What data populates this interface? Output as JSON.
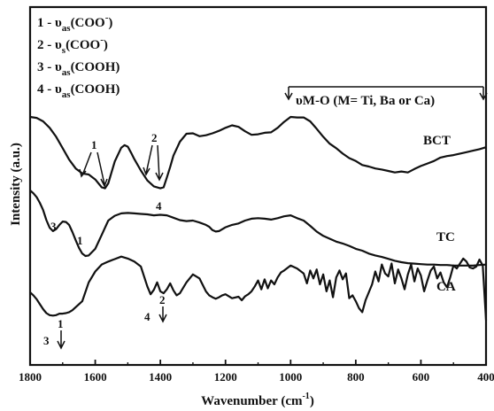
{
  "chart_data": {
    "type": "line",
    "xlabel": "Wavenumber (cm",
    "xlabel_sup": "-1",
    "xlabel_tail": ")",
    "ylabel": "Intensity (a.u.)",
    "xlim": [
      1800,
      400
    ],
    "x_reversed": true,
    "xticks": [
      "1800",
      "1600",
      "1400",
      "1200",
      "1000",
      "800",
      "600",
      "400"
    ],
    "grid": false,
    "legend": [
      {
        "num": "1 - ",
        "sym": "υ",
        "sub": "as",
        "group": "(COO",
        "sup": "-",
        "close": ")"
      },
      {
        "num": "2 - ",
        "sym": "υ",
        "sub": "s",
        "group": "(COO",
        "sup": "-",
        "close": ")"
      },
      {
        "num": "3 - ",
        "sym": "υ",
        "sub": "as",
        "group": "(COOH)",
        "sup": "",
        "close": ""
      },
      {
        "num": "4 - ",
        "sym": "υ",
        "sub": "as",
        "group": "(COOH)",
        "sup": "",
        "close": ""
      }
    ],
    "bracket_label": "υM-O (M= Ti, Ba or Ca)",
    "bracket_range": [
      1000,
      400
    ],
    "series": [
      {
        "name": "BCT",
        "x": [
          1800,
          1780,
          1760,
          1740,
          1720,
          1700,
          1680,
          1660,
          1640,
          1620,
          1600,
          1580,
          1570,
          1560,
          1540,
          1520,
          1510,
          1500,
          1490,
          1480,
          1460,
          1440,
          1420,
          1400,
          1390,
          1380,
          1370,
          1360,
          1340,
          1320,
          1300,
          1280,
          1260,
          1240,
          1220,
          1200,
          1180,
          1160,
          1140,
          1120,
          1100,
          1080,
          1060,
          1040,
          1020,
          1000,
          980,
          960,
          940,
          920,
          900,
          880,
          860,
          840,
          820,
          800,
          780,
          760,
          740,
          720,
          700,
          680,
          660,
          640,
          620,
          600,
          580,
          560,
          540,
          520,
          500,
          480,
          460,
          440,
          420,
          400
        ],
        "y": [
          0.0,
          0.2,
          0.9,
          2.2,
          4.0,
          6.3,
          8.6,
          10.4,
          11.4,
          11.6,
          12.6,
          14.2,
          14.4,
          13.4,
          9.0,
          6.2,
          5.7,
          6.0,
          7.2,
          8.5,
          10.8,
          12.8,
          14.0,
          14.4,
          14.2,
          12.2,
          10.1,
          7.8,
          5.0,
          3.4,
          3.3,
          3.9,
          3.7,
          3.3,
          2.8,
          2.2,
          1.7,
          2.0,
          2.9,
          3.6,
          3.5,
          3.2,
          3.1,
          2.2,
          1.0,
          0.0,
          0.1,
          0.1,
          0.9,
          2.4,
          4.0,
          5.4,
          6.3,
          7.4,
          8.3,
          8.9,
          9.7,
          10.0,
          10.4,
          10.6,
          10.9,
          11.2,
          11.0,
          11.2,
          10.5,
          9.9,
          9.4,
          8.9,
          8.2,
          7.9,
          7.7,
          7.4,
          7.1,
          6.8,
          6.5,
          6.1
        ]
      },
      {
        "name": "TC",
        "x": [
          1800,
          1790,
          1780,
          1770,
          1760,
          1750,
          1740,
          1730,
          1720,
          1710,
          1700,
          1690,
          1680,
          1670,
          1660,
          1650,
          1640,
          1630,
          1620,
          1600,
          1580,
          1560,
          1540,
          1520,
          1500,
          1480,
          1460,
          1440,
          1420,
          1400,
          1380,
          1360,
          1340,
          1320,
          1300,
          1280,
          1260,
          1250,
          1240,
          1230,
          1220,
          1200,
          1180,
          1160,
          1140,
          1120,
          1100,
          1080,
          1060,
          1040,
          1020,
          1000,
          980,
          960,
          940,
          920,
          900,
          880,
          860,
          840,
          820,
          800,
          780,
          760,
          740,
          720,
          700,
          680,
          660,
          640,
          620,
          600,
          580,
          560,
          540,
          520,
          500,
          480,
          460,
          440,
          420,
          400
        ],
        "y": [
          0.0,
          0.6,
          1.4,
          2.6,
          4.1,
          6.2,
          7.8,
          8.5,
          8.1,
          7.2,
          6.5,
          6.6,
          7.2,
          8.7,
          10.4,
          12.0,
          13.2,
          13.7,
          13.6,
          12.2,
          9.3,
          6.3,
          5.3,
          4.8,
          4.7,
          4.8,
          4.9,
          5.0,
          5.2,
          5.1,
          5.2,
          5.7,
          6.2,
          6.4,
          6.3,
          6.7,
          7.2,
          7.6,
          8.3,
          8.6,
          8.5,
          7.7,
          7.2,
          6.9,
          6.3,
          5.9,
          5.8,
          5.9,
          6.1,
          5.8,
          5.4,
          5.2,
          5.8,
          6.3,
          7.4,
          8.6,
          9.5,
          10.1,
          10.7,
          11.1,
          11.6,
          12.2,
          12.6,
          13.2,
          13.6,
          13.9,
          14.3,
          14.7,
          15.0,
          15.2,
          15.3,
          15.4,
          15.5,
          15.5,
          15.6,
          15.6,
          15.7,
          15.7,
          15.7,
          15.7,
          15.6,
          15.5
        ]
      },
      {
        "name": "CA",
        "x": [
          1800,
          1790,
          1780,
          1770,
          1760,
          1750,
          1740,
          1730,
          1720,
          1710,
          1700,
          1690,
          1680,
          1670,
          1660,
          1640,
          1620,
          1600,
          1580,
          1560,
          1540,
          1520,
          1500,
          1480,
          1460,
          1440,
          1430,
          1420,
          1410,
          1400,
          1390,
          1380,
          1370,
          1360,
          1350,
          1340,
          1320,
          1300,
          1280,
          1260,
          1250,
          1240,
          1230,
          1220,
          1210,
          1200,
          1180,
          1160,
          1150,
          1140,
          1130,
          1120,
          1110,
          1100,
          1090,
          1080,
          1070,
          1060,
          1050,
          1040,
          1030,
          1020,
          1000,
          980,
          960,
          950,
          940,
          930,
          920,
          910,
          900,
          890,
          880,
          870,
          860,
          850,
          840,
          830,
          820,
          810,
          800,
          790,
          780,
          770,
          760,
          750,
          740,
          730,
          720,
          710,
          700,
          690,
          680,
          670,
          660,
          650,
          640,
          630,
          620,
          610,
          600,
          590,
          580,
          570,
          560,
          550,
          540,
          530,
          520,
          510,
          500,
          490,
          480,
          470,
          460,
          450,
          440,
          430,
          420,
          410,
          400
        ],
        "y": [
          0.0,
          0.6,
          1.4,
          2.4,
          3.4,
          4.2,
          4.6,
          4.7,
          4.6,
          4.3,
          4.3,
          4.2,
          4.0,
          3.6,
          3.0,
          1.8,
          -2.0,
          -4.2,
          -5.6,
          -6.2,
          -6.7,
          -7.2,
          -6.8,
          -6.2,
          -5.2,
          -1.2,
          0.4,
          -0.5,
          -2.0,
          -0.2,
          0.2,
          -0.6,
          -1.8,
          -0.4,
          0.6,
          0.2,
          -2.0,
          -3.6,
          -2.8,
          -0.2,
          0.6,
          1.0,
          1.3,
          1.0,
          0.6,
          0.4,
          1.2,
          0.9,
          1.6,
          0.8,
          0.4,
          -0.2,
          -1.2,
          -2.4,
          -0.6,
          -2.6,
          -0.8,
          -2.4,
          -1.6,
          -3.0,
          -4.0,
          -4.4,
          -5.4,
          -4.8,
          -3.8,
          -1.8,
          -4.4,
          -2.8,
          -4.6,
          -1.6,
          -3.6,
          -0.2,
          -2.4,
          1.0,
          -3.0,
          -4.4,
          -2.6,
          -3.8,
          1.2,
          0.6,
          1.8,
          3.2,
          4.0,
          1.6,
          0.0,
          -1.6,
          -4.2,
          -2.2,
          -5.6,
          -3.8,
          -3.2,
          -5.8,
          -1.8,
          -4.6,
          -2.8,
          -0.6,
          -3.6,
          -5.6,
          -2.2,
          -4.8,
          -3.4,
          -0.2,
          -2.4,
          -4.4,
          -5.2,
          -2.8,
          -4.0,
          -2.0,
          -1.0,
          -3.0,
          -5.4,
          -4.8,
          -5.8,
          -6.8,
          -6.2,
          -5.0,
          -4.8,
          -5.2,
          -6.6,
          -5.4,
          5.6
        ]
      }
    ],
    "series_labels": [
      "BCT",
      "TC",
      "CA"
    ],
    "annotations": [
      "1",
      "1",
      "2",
      "3",
      "1",
      "4",
      "3",
      "1",
      "4",
      "2"
    ]
  }
}
